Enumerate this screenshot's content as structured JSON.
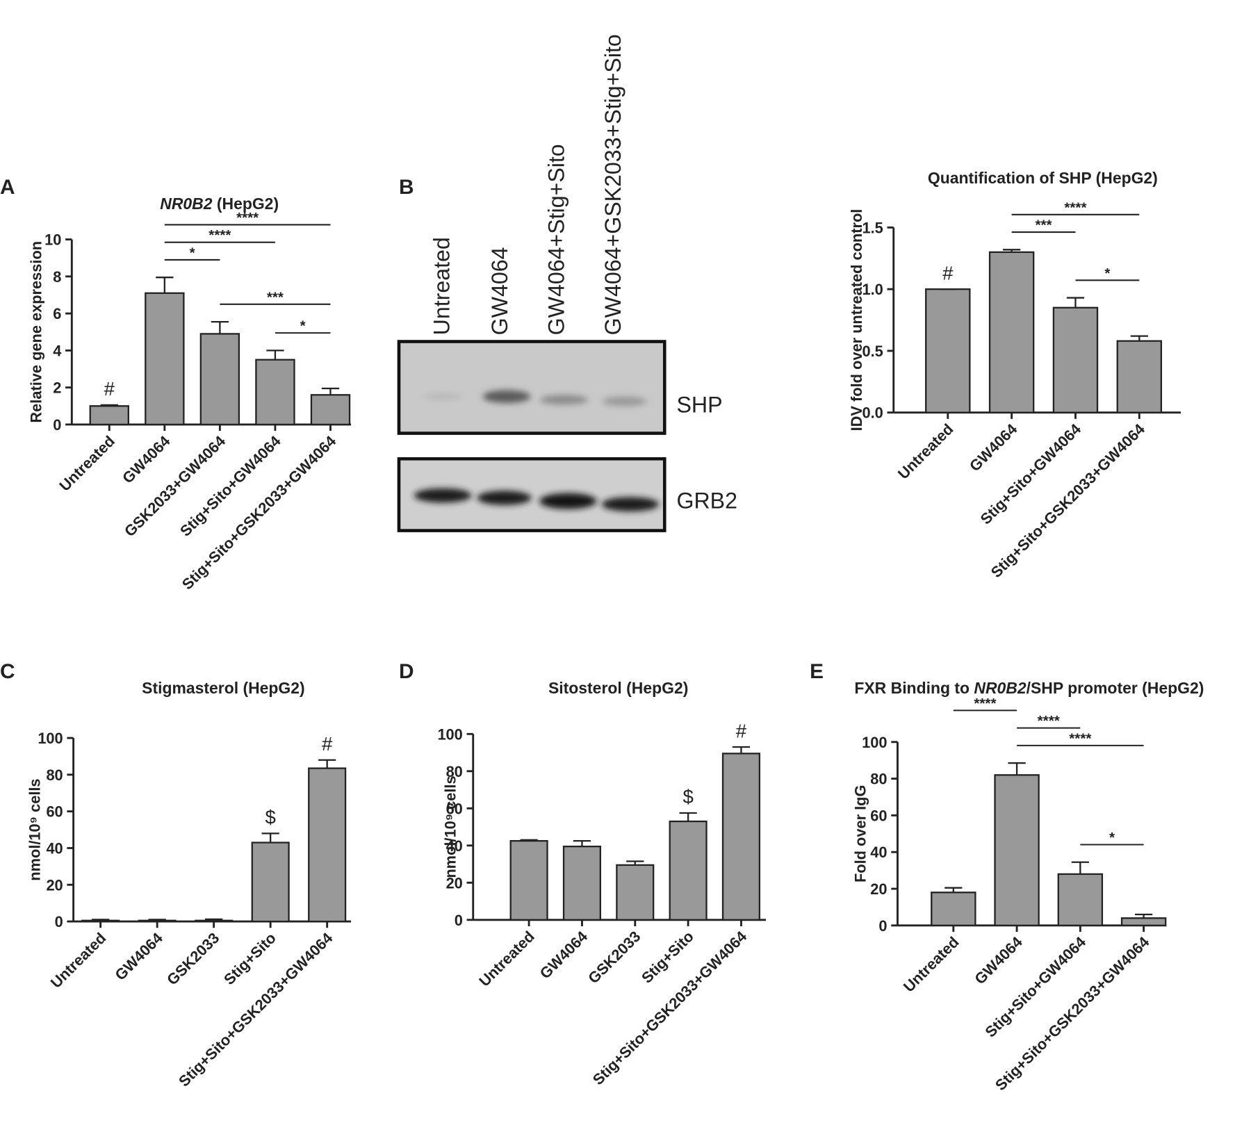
{
  "chart_data": [
    {
      "type": "bar",
      "panel": "A",
      "title": [
        {
          "text": "NR0B2",
          "italic": true
        },
        {
          "text": " (HepG2)",
          "italic": false
        }
      ],
      "ylabel": "Relative gene expression",
      "categories": [
        "Untreated",
        "GW4064",
        "GSK2033+GW4064",
        "Stig+Sito+GW4064",
        "Stig+Sito+GSK2033+GW4064"
      ],
      "values": [
        1.0,
        7.1,
        4.9,
        3.5,
        1.6
      ],
      "errors": [
        0.05,
        0.85,
        0.65,
        0.5,
        0.35
      ],
      "ylim": [
        0,
        10
      ],
      "yticks": [
        0,
        2,
        4,
        6,
        8,
        10
      ],
      "markers": [
        {
          "index": 0,
          "label": "#"
        }
      ],
      "brackets": [
        {
          "from": 3,
          "to": 4,
          "label": "*"
        },
        {
          "from": 2,
          "to": 4,
          "label": "***"
        },
        {
          "from": 1,
          "to": 2,
          "label": "*"
        },
        {
          "from": 1,
          "to": 3,
          "label": "****"
        },
        {
          "from": 1,
          "to": 4,
          "label": "****"
        }
      ],
      "color": "#999999"
    },
    {
      "type": "bar",
      "title": [
        {
          "text": "Quantification of SHP (HepG2)",
          "italic": false
        }
      ],
      "ylabel": "IDV fold over untreated control",
      "categories": [
        "Untreated",
        "GW4064",
        "Stig+Sito+GW4064",
        "Stig+Sito+GSK2033+GW4064"
      ],
      "values": [
        1.0,
        1.3,
        0.85,
        0.58
      ],
      "errors": [
        0.0,
        0.02,
        0.08,
        0.04
      ],
      "ylim": [
        0,
        1.5
      ],
      "yticks": [
        {
          "value": 0,
          "label": "0.0"
        },
        0.5,
        {
          "value": 1,
          "label": "1.0"
        },
        1.5
      ],
      "markers": [
        {
          "index": 0,
          "label": "#"
        }
      ],
      "brackets": [
        {
          "from": 2,
          "to": 3,
          "label": "*"
        },
        {
          "from": 1,
          "to": 2,
          "label": "***"
        },
        {
          "from": 1,
          "to": 3,
          "label": "****"
        }
      ],
      "color": "#999999"
    },
    {
      "type": "bar",
      "panel": "C",
      "title": [
        {
          "text": "Stigmasterol (HepG2)",
          "italic": false
        }
      ],
      "ylabel": "nmol/10⁹ cells",
      "categories": [
        "Untreated",
        "GW4064",
        "GSK2033",
        "Stig+Sito",
        "Stig+Sito+GSK2033+GW4064"
      ],
      "values": [
        0.5,
        0.5,
        0.5,
        43,
        83.5
      ],
      "errors": [
        0.5,
        0.5,
        0.7,
        5,
        4.5
      ],
      "ylim": [
        0,
        100
      ],
      "yticks": [
        0,
        20,
        40,
        60,
        80,
        100
      ],
      "markers": [
        {
          "index": 3,
          "label": "$"
        },
        {
          "index": 4,
          "label": "#"
        }
      ],
      "brackets": [],
      "color": "#999999"
    },
    {
      "type": "bar",
      "panel": "D",
      "title": [
        {
          "text": "Sitosterol (HepG2)",
          "italic": false
        }
      ],
      "ylabel": "nmol/10⁹ cells",
      "categories": [
        "Untreated",
        "GW4064",
        "GSK2033",
        "Stig+Sito",
        "Stig+Sito+GSK2033+GW4064"
      ],
      "values": [
        42.5,
        39.5,
        29.5,
        53,
        89.5
      ],
      "errors": [
        0.5,
        3,
        2,
        4.5,
        3.5
      ],
      "ylim": [
        0,
        100
      ],
      "yticks": [
        0,
        20,
        40,
        60,
        80,
        100
      ],
      "markers": [
        {
          "index": 3,
          "label": "$"
        },
        {
          "index": 4,
          "label": "#"
        }
      ],
      "brackets": [],
      "color": "#999999"
    },
    {
      "type": "bar",
      "panel": "E",
      "title": [
        {
          "text": "FXR Binding to ",
          "italic": false
        },
        {
          "text": "NR0B2",
          "italic": true
        },
        {
          "text": "/SHP promoter (HepG2)",
          "italic": false
        }
      ],
      "ylabel": "Fold over IgG",
      "categories": [
        "Untreated",
        "GW4064",
        "Stig+Sito+GW4064",
        "Stig+Sito+GSK2033+GW4064"
      ],
      "values": [
        18,
        82,
        28,
        4
      ],
      "errors": [
        2.5,
        6.5,
        6.5,
        2
      ],
      "ylim": [
        0,
        100
      ],
      "yticks": [
        0,
        20,
        40,
        60,
        80,
        100
      ],
      "markers": [],
      "brackets": [
        {
          "from": 2,
          "to": 3,
          "label": "*"
        },
        {
          "from": 1,
          "to": 3,
          "label": "****"
        },
        {
          "from": 1,
          "to": 2,
          "label": "****"
        },
        {
          "from": 0,
          "to": 1,
          "label": "****"
        }
      ],
      "color": "#999999"
    }
  ],
  "blot": {
    "panel": "B",
    "lanes": [
      "Untreated",
      "GW4064",
      "GW4064+Stig+Sito",
      "GW4064+GSK2033+Stig+Sito"
    ],
    "bands": [
      "SHP",
      "GRB2"
    ]
  }
}
